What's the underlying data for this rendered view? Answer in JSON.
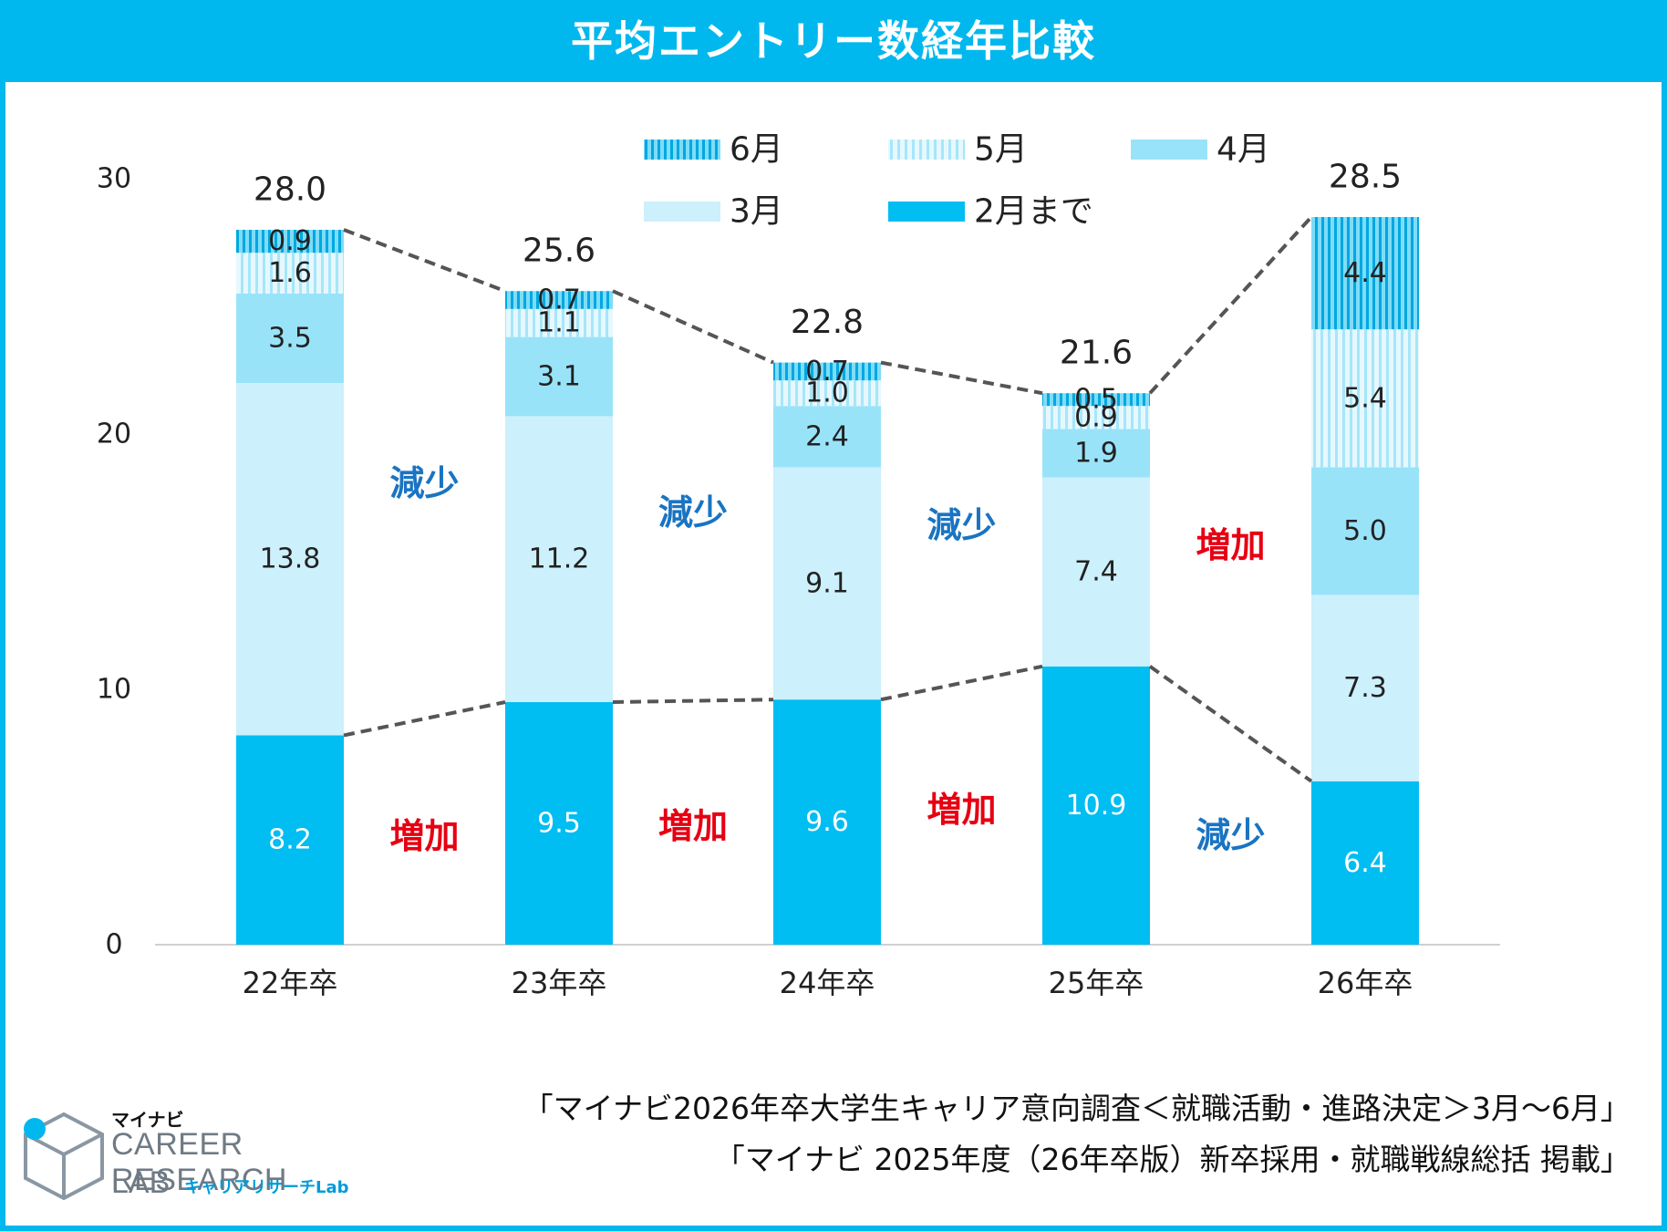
{
  "page": {
    "title": "平均エントリー数経年比較",
    "accent_color": "#00b8ee",
    "sources": [
      "「マイナビ2026年卒大学生キャリア意向調査＜就職活動・進路決定＞3月～6月」",
      "「マイナビ 2025年度（26年卒版）新卒採用・就職戦線総括 掲載」"
    ],
    "logo": {
      "maker": "マイナビ",
      "line1": "CAREER RESEARCH",
      "line2": "LAB",
      "sub": "キャリアリサーチLab"
    }
  },
  "chart_data": {
    "type": "bar",
    "stacked": true,
    "categories": [
      "22年卒",
      "23年卒",
      "24年卒",
      "25年卒",
      "26年卒"
    ],
    "series": [
      {
        "name": "2月まで",
        "values": [
          8.2,
          9.5,
          9.6,
          10.9,
          6.4
        ],
        "color": "#00bdf2",
        "pattern": "solid",
        "label_color": "#ffffff"
      },
      {
        "name": "3月",
        "values": [
          13.8,
          11.2,
          9.1,
          7.4,
          7.3
        ],
        "color": "#ccf0fc",
        "pattern": "solid",
        "label_color": "#222222"
      },
      {
        "name": "4月",
        "values": [
          3.5,
          3.1,
          2.4,
          1.9,
          5.0
        ],
        "color": "#99e3f9",
        "pattern": "solid",
        "label_color": "#222222"
      },
      {
        "name": "5月",
        "values": [
          1.6,
          1.1,
          1.0,
          0.9,
          5.4
        ],
        "color": "#ccf0fc",
        "pattern": "stripes-light",
        "label_color": "#222222"
      },
      {
        "name": "6月",
        "values": [
          0.9,
          0.7,
          0.7,
          0.5,
          4.4
        ],
        "color": "#00bdf2",
        "pattern": "stripes-dense",
        "label_color": "#222222"
      }
    ],
    "totals": [
      28.0,
      25.6,
      22.8,
      21.6,
      28.5
    ],
    "y_ticks": [
      0,
      10,
      20,
      30
    ],
    "ylim": [
      0,
      30
    ],
    "legend_rows": [
      [
        "6月",
        "5月",
        "4月"
      ],
      [
        "3月",
        "2月まで"
      ]
    ],
    "legend_position": "top-right",
    "annotations": {
      "upper": [
        "減少",
        "減少",
        "減少",
        "増加"
      ],
      "lower": [
        "増加",
        "増加",
        "増加",
        "減少"
      ]
    },
    "annotation_colors": {
      "減少": "#1a74c2",
      "増加": "#e60012"
    },
    "connector_color": "#555555"
  }
}
